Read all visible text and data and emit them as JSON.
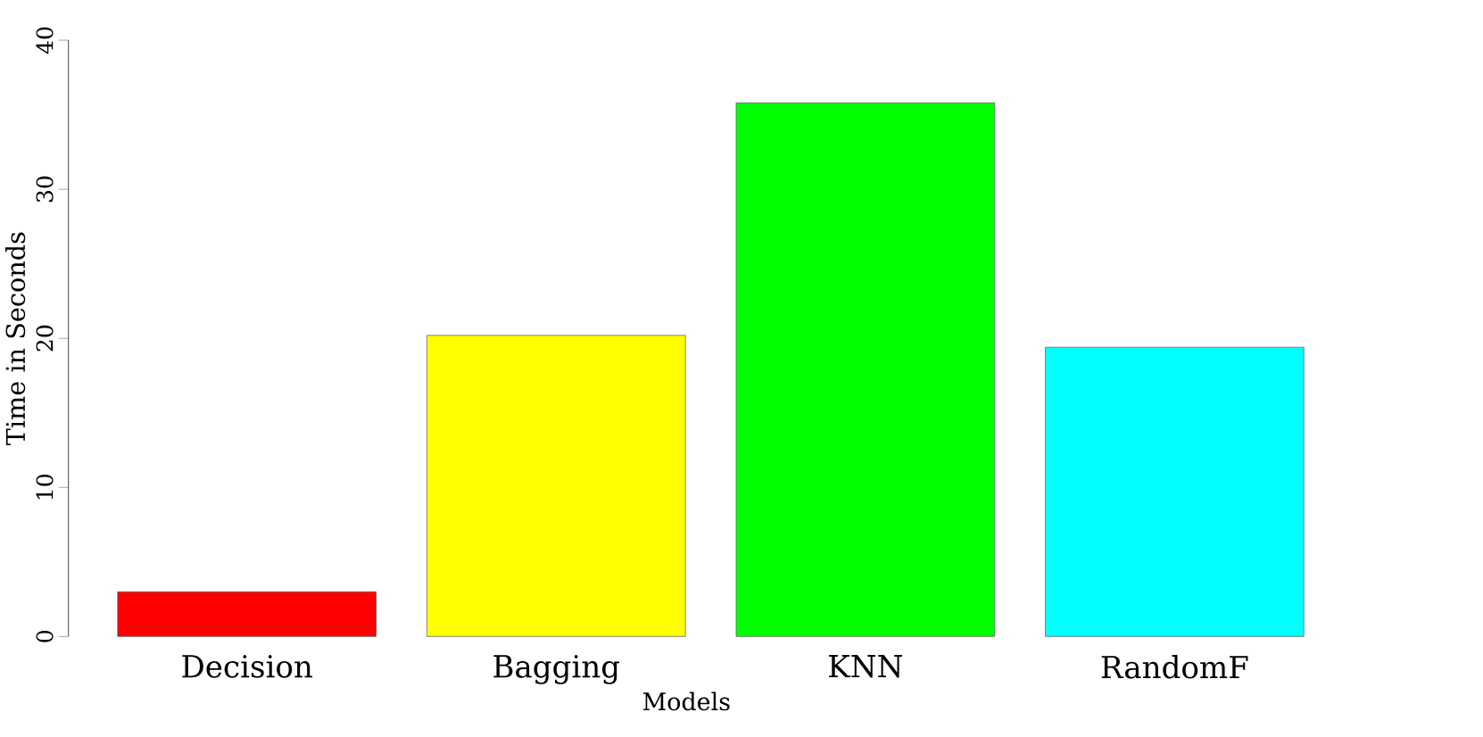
{
  "chart_data": {
    "type": "bar",
    "xlabel": "Models",
    "ylabel": "Time  in  Seconds",
    "categories": [
      "Decision",
      "Bagging",
      "KNN",
      "RandomF"
    ],
    "values": [
      3.0,
      20.2,
      35.8,
      19.4
    ],
    "colors": [
      "#ff0000",
      "#ffff00",
      "#00ff00",
      "#00ffff"
    ],
    "ylim": [
      0,
      40
    ],
    "yticks": [
      0,
      10,
      20,
      30,
      40
    ]
  }
}
